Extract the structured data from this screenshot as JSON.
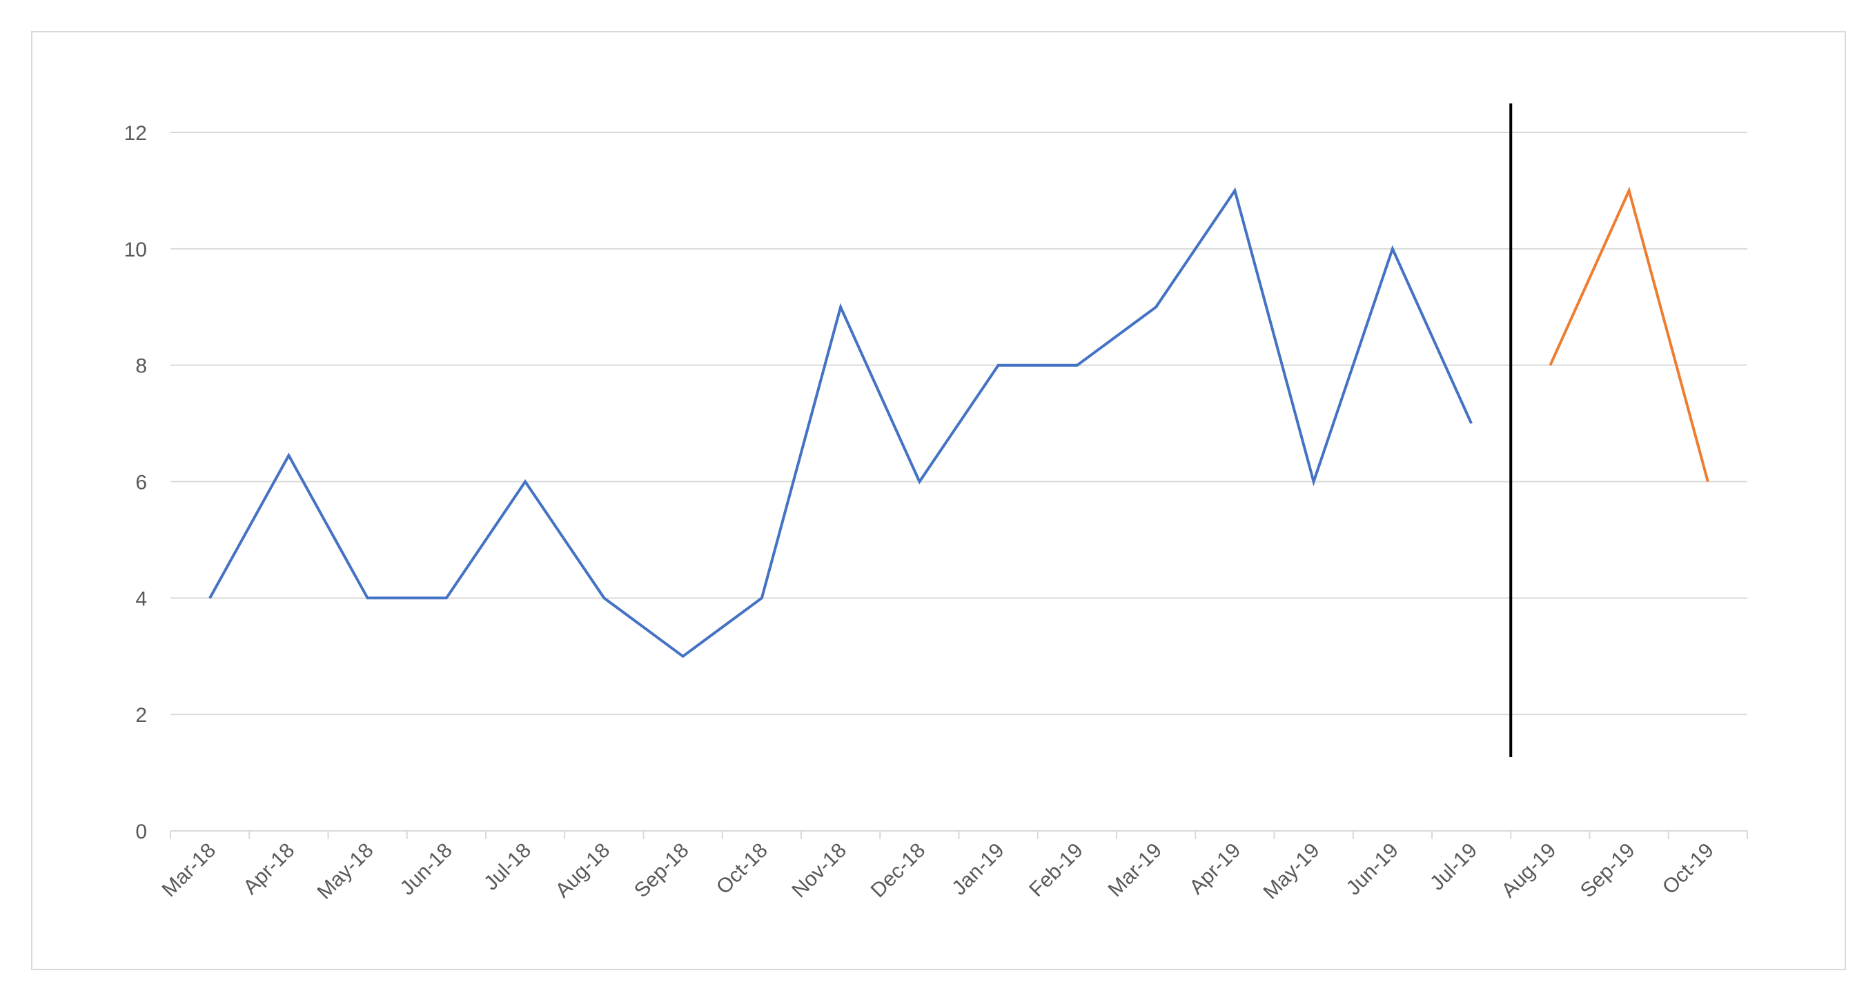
{
  "chart_data": {
    "type": "line",
    "title": "",
    "xlabel": "",
    "ylabel": "",
    "categories": [
      "Mar-18",
      "Apr-18",
      "May-18",
      "Jun-18",
      "Jul-18",
      "Aug-18",
      "Sep-18",
      "Oct-18",
      "Nov-18",
      "Dec-18",
      "Jan-19",
      "Feb-19",
      "Mar-19",
      "Apr-19",
      "May-19",
      "Jun-19",
      "Jul-19",
      "Aug-19",
      "Sep-19",
      "Oct-19"
    ],
    "ylim": [
      0,
      12
    ],
    "yticks": [
      0,
      2,
      4,
      6,
      8,
      10,
      12
    ],
    "grid": "horizontal",
    "legend": "none",
    "series": [
      {
        "color": "#4472c4",
        "values": [
          4,
          6.45,
          4,
          4,
          6,
          4,
          3,
          4,
          9,
          6,
          8,
          8,
          9,
          11,
          6,
          10,
          7,
          null,
          null,
          null
        ]
      },
      {
        "color": "#ed7d31",
        "values": [
          null,
          null,
          null,
          null,
          null,
          null,
          null,
          null,
          null,
          null,
          null,
          null,
          null,
          null,
          null,
          null,
          null,
          8,
          11,
          6
        ]
      }
    ],
    "vertical_marker": {
      "between": [
        "Jul-19",
        "Aug-19"
      ],
      "color": "#000000"
    }
  }
}
